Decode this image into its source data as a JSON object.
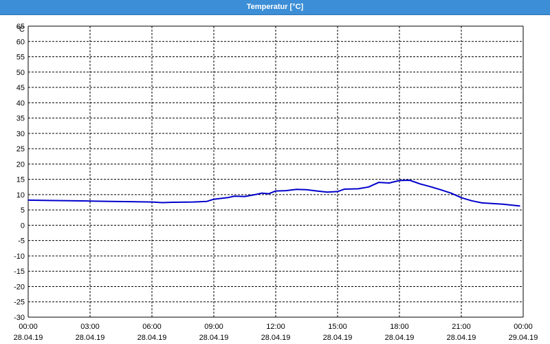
{
  "window": {
    "title": "Temperatur [°C]"
  },
  "chart_data": {
    "type": "line",
    "title": "Temperatur [°C]",
    "y_unit": "°C",
    "ylim": [
      -30,
      65
    ],
    "y_ticks": [
      65,
      60,
      55,
      50,
      45,
      40,
      35,
      30,
      25,
      20,
      15,
      10,
      5,
      0,
      -5,
      -10,
      -15,
      -20,
      -25,
      -30
    ],
    "xlim": [
      "28.04.19 00:00",
      "29.04.19 00:00"
    ],
    "x_ticks": [
      {
        "time": "00:00",
        "date": "28.04.19"
      },
      {
        "time": "03:00",
        "date": "28.04.19"
      },
      {
        "time": "06:00",
        "date": "28.04.19"
      },
      {
        "time": "09:00",
        "date": "28.04.19"
      },
      {
        "time": "12:00",
        "date": "28.04.19"
      },
      {
        "time": "15:00",
        "date": "28.04.19"
      },
      {
        "time": "18:00",
        "date": "28.04.19"
      },
      {
        "time": "21:00",
        "date": "28.04.19"
      },
      {
        "time": "00:00",
        "date": "29.04.19"
      }
    ],
    "grid": true,
    "line_color": "#0000cc",
    "series": [
      {
        "x": [
          "00:00",
          "01:00",
          "02:00",
          "03:00",
          "04:00",
          "05:00",
          "06:00",
          "06:30",
          "07:00",
          "08:00",
          "08:40",
          "09:00",
          "09:40",
          "10:00",
          "10:30",
          "11:00",
          "11:20",
          "11:40",
          "12:00",
          "12:30",
          "13:00",
          "13:30",
          "14:00",
          "14:30",
          "15:00",
          "15:20",
          "16:00",
          "16:30",
          "17:00",
          "17:30",
          "18:00",
          "18:30",
          "19:00",
          "19:30",
          "20:00",
          "20:30",
          "21:00",
          "21:30",
          "22:00",
          "23:00",
          "23:50"
        ],
        "y": [
          8.2,
          8.1,
          8.0,
          7.9,
          7.8,
          7.7,
          7.6,
          7.4,
          7.5,
          7.6,
          7.8,
          8.5,
          9.0,
          9.5,
          9.4,
          10.0,
          10.5,
          10.3,
          11.2,
          11.3,
          11.7,
          11.6,
          11.2,
          10.8,
          11.0,
          11.8,
          11.9,
          12.5,
          14.0,
          13.8,
          14.6,
          14.7,
          13.5,
          12.6,
          11.6,
          10.5,
          9.0,
          8.0,
          7.3,
          6.9,
          6.3
        ]
      }
    ]
  }
}
